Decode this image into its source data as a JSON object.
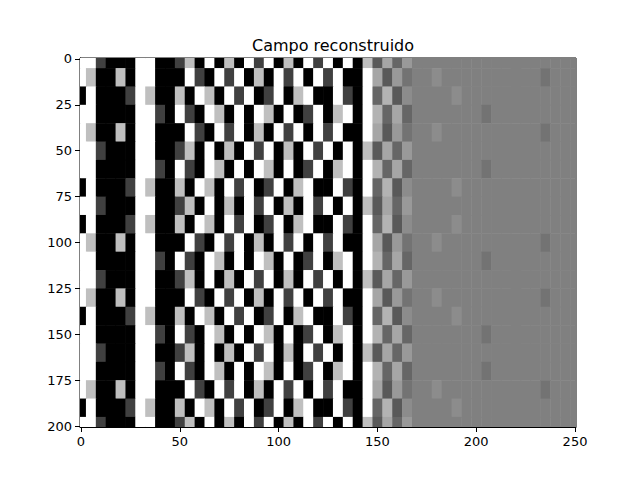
{
  "chart_data": {
    "type": "heatmap",
    "title": "Campo reconstruido",
    "x": [
      0,
      5,
      10,
      15,
      20,
      25,
      30,
      35,
      40,
      45,
      50,
      55,
      60,
      65,
      70,
      75,
      80,
      85,
      90,
      95,
      100,
      105,
      110,
      115,
      120,
      125,
      130,
      135,
      140,
      145,
      150,
      155,
      160,
      165,
      170,
      175,
      180,
      185,
      190,
      195,
      200,
      205,
      210,
      215,
      220,
      225,
      230,
      235,
      240,
      245,
      250
    ],
    "y": [
      0,
      10,
      20,
      30,
      40,
      50,
      60,
      70,
      80,
      90,
      100,
      110,
      120,
      130,
      140,
      150,
      160,
      170,
      180,
      190,
      200
    ],
    "values": [
      [
        1,
        1,
        -0.5,
        -1,
        -1,
        -1,
        1,
        1,
        -1,
        -1,
        -0.5,
        0.5,
        -1,
        1,
        -1,
        0.5,
        -1,
        1,
        -0.5,
        1,
        -1,
        0.5,
        -1,
        1,
        -0.5,
        1,
        -1,
        1,
        -1,
        0.5,
        -0.3,
        0.3,
        -0.2,
        0.2,
        0,
        0,
        0,
        0,
        0,
        0,
        0,
        0,
        0,
        0,
        0,
        0,
        0,
        0,
        0,
        0,
        0
      ],
      [
        1,
        0.5,
        -1,
        -1,
        0.5,
        -1,
        1,
        1,
        -1,
        -1,
        -1,
        1,
        -0.5,
        -1,
        1,
        -0.5,
        1,
        -1,
        0.5,
        -1,
        1,
        -0.5,
        1,
        -1,
        1,
        -0.5,
        1,
        -1,
        -1,
        1,
        0.3,
        -0.3,
        0.2,
        -0.1,
        0,
        0,
        0.1,
        0,
        0,
        0,
        0,
        0,
        0,
        0,
        0,
        0,
        0,
        -0.1,
        0,
        0,
        0
      ],
      [
        -1,
        1,
        -1,
        -1,
        -1,
        -0.5,
        1,
        0.5,
        -1,
        -1,
        0.5,
        -1,
        1,
        0.5,
        -1,
        1,
        -0.5,
        1,
        -1,
        -0.5,
        1,
        -1,
        0.5,
        1,
        -1,
        -1,
        1,
        -0.5,
        -1,
        1,
        -0.2,
        0.4,
        -0.3,
        0.1,
        0,
        0,
        0,
        0,
        0.1,
        0,
        0,
        0,
        0,
        0,
        0,
        0,
        0,
        0,
        0,
        0,
        0
      ],
      [
        1,
        1,
        -1,
        -1,
        -1,
        -1,
        1,
        1,
        -0.5,
        -1,
        1,
        -0.5,
        -1,
        1,
        0.5,
        -1,
        1,
        -1,
        1,
        0.5,
        -1,
        1,
        -1,
        -0.5,
        1,
        -1,
        0.5,
        1,
        -1,
        1,
        0.4,
        -0.2,
        0.3,
        -0.2,
        0,
        0,
        0,
        0,
        0,
        0,
        0,
        -0.1,
        0,
        0,
        0,
        0,
        0,
        0,
        0,
        0,
        0
      ],
      [
        1,
        0.5,
        -1,
        -1,
        0.5,
        -1,
        1,
        1,
        -1,
        -1,
        -1,
        1,
        -0.5,
        -1,
        1,
        -0.5,
        1,
        -1,
        0.5,
        -1,
        1,
        -0.5,
        1,
        -1,
        1,
        -0.5,
        1,
        -1,
        -1,
        1,
        0.3,
        -0.3,
        0.2,
        -0.1,
        0,
        0,
        0.1,
        0,
        0,
        0,
        0,
        0,
        0,
        0,
        0,
        0,
        0,
        -0.1,
        0,
        0,
        0
      ],
      [
        1,
        1,
        -0.5,
        -1,
        -1,
        -1,
        1,
        1,
        -1,
        -1,
        -0.5,
        0.5,
        -1,
        1,
        -1,
        0.5,
        -1,
        1,
        -0.5,
        1,
        -1,
        0.5,
        -1,
        1,
        -0.5,
        1,
        -1,
        1,
        -1,
        0.5,
        -0.3,
        0.3,
        -0.2,
        0.2,
        0,
        0,
        0,
        0,
        0,
        0,
        0,
        0,
        0,
        0,
        0,
        0,
        0,
        0,
        0,
        0,
        0
      ],
      [
        1,
        1,
        -1,
        -1,
        -1,
        -1,
        1,
        1,
        -0.5,
        -1,
        1,
        -0.5,
        -1,
        1,
        0.5,
        -1,
        1,
        -1,
        1,
        0.5,
        -1,
        1,
        -1,
        -0.5,
        1,
        -1,
        0.5,
        1,
        -1,
        1,
        0.4,
        -0.2,
        0.3,
        -0.2,
        0,
        0,
        0,
        0,
        0,
        0,
        0,
        -0.1,
        0,
        0,
        0,
        0,
        0,
        0,
        0,
        0,
        0
      ],
      [
        -1,
        1,
        -1,
        -1,
        -1,
        -0.5,
        1,
        0.5,
        -1,
        -1,
        0.5,
        -1,
        1,
        0.5,
        -1,
        1,
        -0.5,
        1,
        -1,
        -0.5,
        1,
        -1,
        0.5,
        1,
        -1,
        -1,
        1,
        -0.5,
        -1,
        1,
        -0.2,
        0.4,
        -0.3,
        0.1,
        0,
        0,
        0,
        0,
        0.1,
        0,
        0,
        0,
        0,
        0,
        0,
        0,
        0,
        0,
        0,
        0,
        0
      ],
      [
        1,
        1,
        -0.5,
        -1,
        -1,
        -1,
        1,
        1,
        -1,
        -1,
        -0.5,
        0.5,
        -1,
        1,
        -1,
        0.5,
        -1,
        1,
        -0.5,
        1,
        -1,
        0.5,
        -1,
        1,
        -0.5,
        1,
        -1,
        1,
        -1,
        0.5,
        -0.3,
        0.3,
        -0.2,
        0.2,
        0,
        0,
        0,
        0,
        0,
        0,
        0,
        0,
        0,
        0,
        0,
        0,
        0,
        0,
        0,
        0,
        0
      ],
      [
        -1,
        1,
        -1,
        -1,
        -1,
        -0.5,
        1,
        0.5,
        -1,
        -1,
        0.5,
        -1,
        1,
        0.5,
        -1,
        1,
        -0.5,
        1,
        -1,
        -0.5,
        1,
        -1,
        0.5,
        1,
        -1,
        -1,
        1,
        -0.5,
        -1,
        1,
        -0.2,
        0.4,
        -0.3,
        0.1,
        0,
        0,
        0,
        0,
        0.1,
        0,
        0,
        0,
        0,
        0,
        0,
        0,
        0,
        0,
        0,
        0,
        0
      ],
      [
        1,
        0.5,
        -1,
        -1,
        0.5,
        -1,
        1,
        1,
        -1,
        -1,
        -1,
        1,
        -0.5,
        -1,
        1,
        -0.5,
        1,
        -1,
        0.5,
        -1,
        1,
        -0.5,
        1,
        -1,
        1,
        -0.5,
        1,
        -1,
        -1,
        1,
        0.3,
        -0.3,
        0.2,
        -0.1,
        0,
        0,
        0.1,
        0,
        0,
        0,
        0,
        0,
        0,
        0,
        0,
        0,
        0,
        -0.1,
        0,
        0,
        0
      ],
      [
        1,
        1,
        -1,
        -1,
        -1,
        -1,
        1,
        1,
        -0.5,
        -1,
        1,
        -0.5,
        -1,
        1,
        0.5,
        -1,
        1,
        -1,
        1,
        0.5,
        -1,
        1,
        -1,
        -0.5,
        1,
        -1,
        0.5,
        1,
        -1,
        1,
        0.4,
        -0.2,
        0.3,
        -0.2,
        0,
        0,
        0,
        0,
        0,
        0,
        0,
        -0.1,
        0,
        0,
        0,
        0,
        0,
        0,
        0,
        0,
        0
      ],
      [
        1,
        1,
        -0.5,
        -1,
        -1,
        -1,
        1,
        1,
        -1,
        -1,
        -0.5,
        0.5,
        -1,
        1,
        -1,
        0.5,
        -1,
        1,
        -0.5,
        1,
        -1,
        0.5,
        -1,
        1,
        -0.5,
        1,
        -1,
        1,
        -1,
        0.5,
        -0.3,
        0.3,
        -0.2,
        0.2,
        0,
        0,
        0,
        0,
        0,
        0,
        0,
        0,
        0,
        0,
        0,
        0,
        0,
        0,
        0,
        0,
        0
      ],
      [
        1,
        0.5,
        -1,
        -1,
        0.5,
        -1,
        1,
        1,
        -1,
        -1,
        -1,
        1,
        -0.5,
        -1,
        1,
        -0.5,
        1,
        -1,
        0.5,
        -1,
        1,
        -0.5,
        1,
        -1,
        1,
        -0.5,
        1,
        -1,
        -1,
        1,
        0.3,
        -0.3,
        0.2,
        -0.1,
        0,
        0,
        0.1,
        0,
        0,
        0,
        0,
        0,
        0,
        0,
        0,
        0,
        0,
        -0.1,
        0,
        0,
        0
      ],
      [
        -1,
        1,
        -1,
        -1,
        -1,
        -0.5,
        1,
        0.5,
        -1,
        -1,
        0.5,
        -1,
        1,
        0.5,
        -1,
        1,
        -0.5,
        1,
        -1,
        -0.5,
        1,
        -1,
        0.5,
        1,
        -1,
        -1,
        1,
        -0.5,
        -1,
        1,
        -0.2,
        0.4,
        -0.3,
        0.1,
        0,
        0,
        0,
        0,
        0.1,
        0,
        0,
        0,
        0,
        0,
        0,
        0,
        0,
        0,
        0,
        0,
        0
      ],
      [
        1,
        1,
        -1,
        -1,
        -1,
        -1,
        1,
        1,
        -0.5,
        -1,
        1,
        -0.5,
        -1,
        1,
        0.5,
        -1,
        1,
        -1,
        1,
        0.5,
        -1,
        1,
        -1,
        -0.5,
        1,
        -1,
        0.5,
        1,
        -1,
        1,
        0.4,
        -0.2,
        0.3,
        -0.2,
        0,
        0,
        0,
        0,
        0,
        0,
        0,
        -0.1,
        0,
        0,
        0,
        0,
        0,
        0,
        0,
        0,
        0
      ],
      [
        1,
        1,
        -0.5,
        -1,
        -1,
        -1,
        1,
        1,
        -1,
        -1,
        -0.5,
        0.5,
        -1,
        1,
        -1,
        0.5,
        -1,
        1,
        -0.5,
        1,
        -1,
        0.5,
        -1,
        1,
        -0.5,
        1,
        -1,
        1,
        -1,
        0.5,
        -0.3,
        0.3,
        -0.2,
        0.2,
        0,
        0,
        0,
        0,
        0,
        0,
        0,
        0,
        0,
        0,
        0,
        0,
        0,
        0,
        0,
        0,
        0
      ],
      [
        1,
        1,
        -1,
        -1,
        -1,
        -1,
        1,
        1,
        -0.5,
        -1,
        1,
        -0.5,
        -1,
        1,
        0.5,
        -1,
        1,
        -1,
        1,
        0.5,
        -1,
        1,
        -1,
        -0.5,
        1,
        -1,
        0.5,
        1,
        -1,
        1,
        0.4,
        -0.2,
        0.3,
        -0.2,
        0,
        0,
        0,
        0,
        0,
        0,
        0,
        -0.1,
        0,
        0,
        0,
        0,
        0,
        0,
        0,
        0,
        0
      ],
      [
        1,
        0.5,
        -1,
        -1,
        0.5,
        -1,
        1,
        1,
        -1,
        -1,
        -1,
        1,
        -0.5,
        -1,
        1,
        -0.5,
        1,
        -1,
        0.5,
        -1,
        1,
        -0.5,
        1,
        -1,
        1,
        -0.5,
        1,
        -1,
        -1,
        1,
        0.3,
        -0.3,
        0.2,
        -0.1,
        0,
        0,
        0.1,
        0,
        0,
        0,
        0,
        0,
        0,
        0,
        0,
        0,
        0,
        -0.1,
        0,
        0,
        0
      ],
      [
        -1,
        1,
        -1,
        -1,
        -1,
        -0.5,
        1,
        0.5,
        -1,
        -1,
        0.5,
        -1,
        1,
        0.5,
        -1,
        1,
        -0.5,
        1,
        -1,
        -0.5,
        1,
        -1,
        0.5,
        1,
        -1,
        -1,
        1,
        -0.5,
        -1,
        1,
        -0.2,
        0.4,
        -0.3,
        0.1,
        0,
        0,
        0,
        0,
        0.1,
        0,
        0,
        0,
        0,
        0,
        0,
        0,
        0,
        0,
        0,
        0,
        0
      ],
      [
        1,
        1,
        -0.5,
        -1,
        -1,
        -1,
        1,
        1,
        -1,
        -1,
        -0.5,
        0.5,
        -1,
        1,
        -1,
        0.5,
        -1,
        1,
        -0.5,
        1,
        -1,
        0.5,
        -1,
        1,
        -0.5,
        1,
        -1,
        1,
        -1,
        0.5,
        -0.3,
        0.3,
        -0.2,
        0.2,
        0,
        0,
        0,
        0,
        0,
        0,
        0,
        0,
        0,
        0,
        0,
        0,
        0,
        0,
        0,
        0,
        0
      ]
    ],
    "color_range": [
      -1,
      1
    ],
    "xlim": [
      -0.5,
      250.5
    ],
    "xticks": [
      0,
      50,
      100,
      150,
      200,
      250
    ],
    "ylim": [
      200.5,
      -0.5
    ],
    "yticks": [
      0,
      25,
      50,
      75,
      100,
      125,
      150,
      175,
      200
    ],
    "grid": false
  }
}
